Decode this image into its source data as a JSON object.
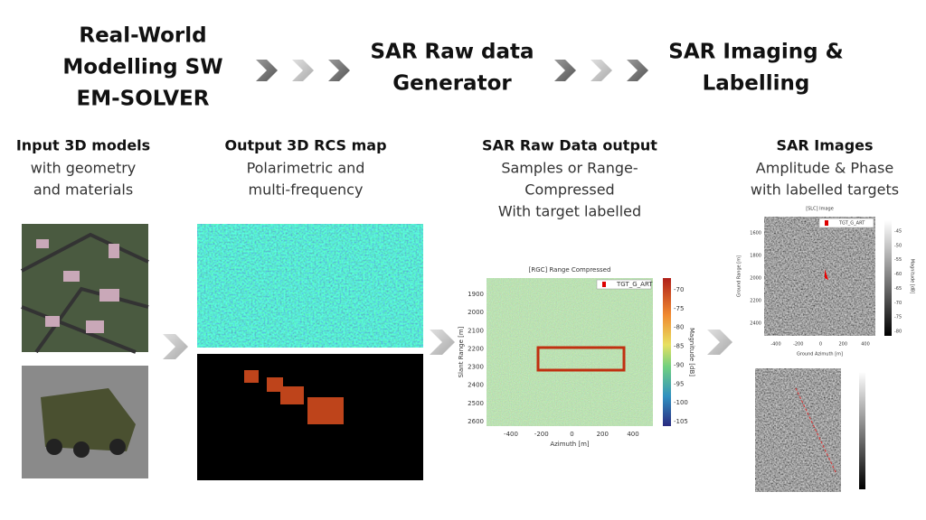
{
  "header": {
    "steps": [
      {
        "lines": [
          "Real-World",
          "Modelling SW",
          "EM-SOLVER"
        ]
      },
      {
        "lines": [
          "SAR Raw data",
          "Generator"
        ]
      },
      {
        "lines": [
          "SAR Imaging &",
          "Labelling"
        ]
      }
    ]
  },
  "columns": [
    {
      "title": "Input 3D models",
      "lines": [
        "with geometry",
        "and materials"
      ]
    },
    {
      "title": "Output 3D RCS map",
      "lines": [
        "Polarimetric and",
        "multi-frequency"
      ]
    },
    {
      "title": "SAR Raw Data output",
      "lines": [
        "Samples or Range-",
        "Compressed",
        "With target labelled"
      ]
    },
    {
      "title": "SAR Images",
      "lines": [
        "Amplitude & Phase",
        "with labelled targets"
      ]
    }
  ],
  "plots": [
    {
      "title": "[RGC] Range Compressed",
      "legend": "TGT_G_ART",
      "xlabel": "Azimuth [m]",
      "ylabel": "Slant Range [m]",
      "xticks": [
        "-400",
        "-200",
        "0",
        "200",
        "400"
      ],
      "yticks": [
        "1900",
        "2000",
        "2100",
        "2200",
        "2300",
        "2400",
        "2500",
        "2600"
      ],
      "colorbar_ticks": [
        "-70",
        "-75",
        "-80",
        "-85",
        "-90",
        "-95",
        "-100",
        "-105"
      ],
      "colorbar_label": "Magnitude [dB]"
    },
    {
      "title": "[SLC] Image",
      "legend": "TGT_G_ART",
      "xlabel": "Ground Azimuth [m]",
      "ylabel": "Ground Range [m]",
      "xticks": [
        "-400",
        "-200",
        "0",
        "200",
        "400"
      ],
      "yticks": [
        "1600",
        "1800",
        "2000",
        "2200",
        "2400"
      ],
      "colorbar_ticks": [
        "-45",
        "-50",
        "-55",
        "-60",
        "-65",
        "-70",
        "-75",
        "-80"
      ],
      "colorbar_label": "Magnitude [dB]"
    }
  ]
}
